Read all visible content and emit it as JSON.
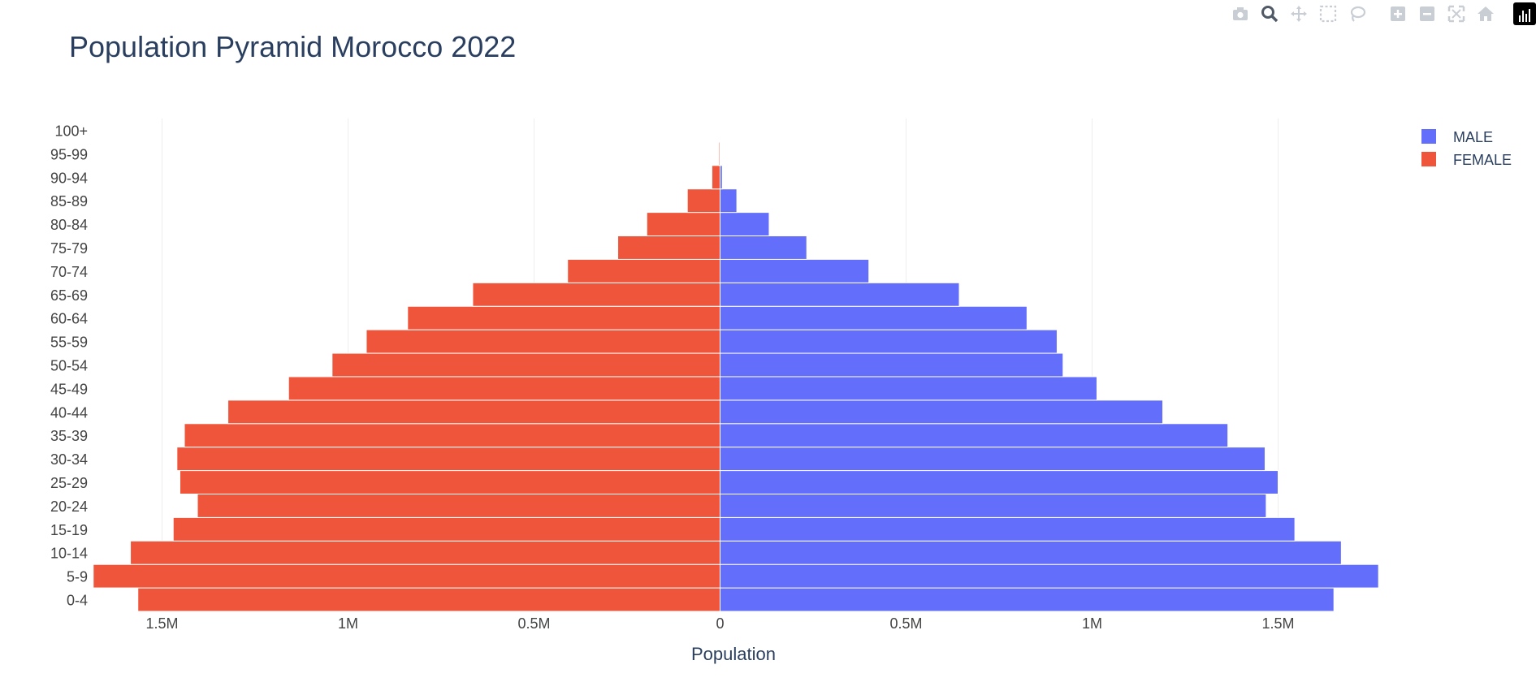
{
  "modebar": [
    {
      "name": "camera-icon",
      "title": "Download plot as a png"
    },
    {
      "name": "zoom-icon",
      "title": "Zoom"
    },
    {
      "name": "pan-icon",
      "title": "Pan"
    },
    {
      "name": "box-select-icon",
      "title": "Box Select"
    },
    {
      "name": "lasso-select-icon",
      "title": "Lasso Select"
    },
    {
      "name": "zoom-in-icon",
      "title": "Zoom in"
    },
    {
      "name": "zoom-out-icon",
      "title": "Zoom out"
    },
    {
      "name": "autoscale-icon",
      "title": "Autoscale"
    },
    {
      "name": "reset-axes-icon",
      "title": "Reset axes"
    },
    {
      "name": "plotly-logo-icon",
      "title": "Produced with Plotly"
    }
  ],
  "colors": {
    "male": "#636efa",
    "female": "#ef553b",
    "text": "#2a3f5f",
    "axis_text": "#444444",
    "grid": "#eeeeee",
    "icon": "#c9cdd4",
    "icon_active": "#505a66"
  },
  "chart_data": {
    "type": "bar",
    "orientation": "horizontal",
    "title": "Population Pyramid Morocco 2022",
    "xlabel": "Population",
    "ylabel": "",
    "xlim": [
      -1.75,
      1.75
    ],
    "x_unit": "M",
    "x_ticks": [
      {
        "value": -1.5,
        "label": "1.5M"
      },
      {
        "value": -1.0,
        "label": "1M"
      },
      {
        "value": -0.5,
        "label": "0.5M"
      },
      {
        "value": 0,
        "label": "0"
      },
      {
        "value": 0.5,
        "label": "0.5M"
      },
      {
        "value": 1.0,
        "label": "1M"
      },
      {
        "value": 1.5,
        "label": "1.5M"
      }
    ],
    "categories": [
      "0-4",
      "5-9",
      "10-14",
      "15-19",
      "20-24",
      "25-29",
      "30-34",
      "35-39",
      "40-44",
      "45-49",
      "50-54",
      "55-59",
      "60-64",
      "65-69",
      "70-74",
      "75-79",
      "80-84",
      "85-89",
      "90-94",
      "95-99",
      "100+"
    ],
    "series": [
      {
        "name": "MALE",
        "values": [
          1.65,
          1.77,
          1.67,
          1.545,
          1.468,
          1.5,
          1.465,
          1.365,
          1.19,
          1.013,
          0.922,
          0.906,
          0.825,
          0.643,
          0.4,
          0.233,
          0.132,
          0.045,
          0.006,
          0.001,
          0.0001
        ]
      },
      {
        "name": "FEMALE",
        "values": [
          -1.565,
          -1.685,
          -1.585,
          -1.47,
          -1.405,
          -1.452,
          -1.46,
          -1.44,
          -1.323,
          -1.16,
          -1.043,
          -0.951,
          -0.84,
          -0.665,
          -0.41,
          -0.275,
          -0.197,
          -0.088,
          -0.022,
          -0.003,
          -0.0003
        ]
      }
    ],
    "grid": true,
    "legend_position": "top-right"
  }
}
